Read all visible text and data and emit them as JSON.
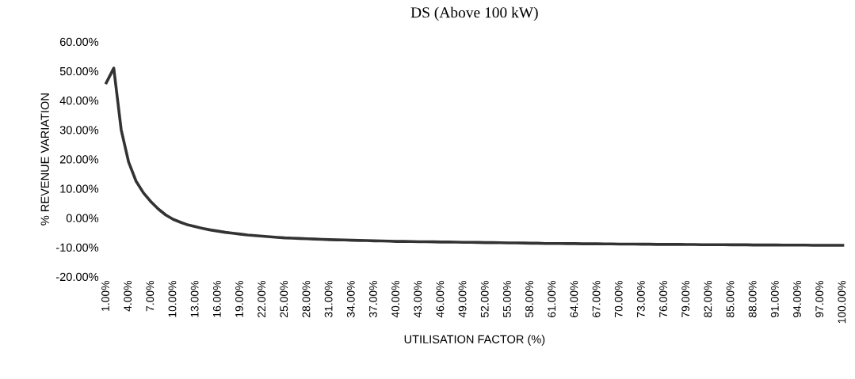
{
  "chart_data": {
    "type": "line",
    "title": "DS (Above 100 kW)",
    "xlabel": "UTILISATION FACTOR (%)",
    "ylabel": "% REVENUE VARIATION",
    "categories": [
      "1.00%",
      null,
      null,
      "4.00%",
      null,
      null,
      "7.00%",
      null,
      null,
      "10.00%",
      null,
      null,
      "13.00%",
      null,
      null,
      "16.00%",
      null,
      null,
      "19.00%",
      null,
      null,
      "22.00%",
      null,
      null,
      "25.00%",
      null,
      null,
      "28.00%",
      null,
      null,
      "31.00%",
      null,
      null,
      "34.00%",
      null,
      null,
      "37.00%",
      null,
      null,
      "40.00%",
      null,
      null,
      "43.00%",
      null,
      null,
      "46.00%",
      null,
      null,
      "49.00%",
      null,
      null,
      "52.00%",
      null,
      null,
      "55.00%",
      null,
      null,
      "58.00%",
      null,
      null,
      "61.00%",
      null,
      null,
      "64.00%",
      null,
      null,
      "67.00%",
      null,
      null,
      "70.00%",
      null,
      null,
      "73.00%",
      null,
      null,
      "76.00%",
      null,
      null,
      "79.00%",
      null,
      null,
      "82.00%",
      null,
      null,
      "85.00%",
      null,
      null,
      "88.00%",
      null,
      null,
      "91.00%",
      null,
      null,
      "94.00%",
      null,
      null,
      "97.00%",
      null,
      null,
      "100.00%"
    ],
    "series": [
      {
        "color": "#333333",
        "values": [
          46,
          51,
          30,
          19,
          12.5,
          8.5,
          5.5,
          3,
          1,
          -0.5,
          -1.5,
          -2.4,
          -3,
          -3.6,
          -4.1,
          -4.5,
          -4.9,
          -5.2,
          -5.5,
          -5.8,
          -6,
          -6.2,
          -6.4,
          -6.6,
          -6.8,
          -6.9,
          -7.0,
          -7.1,
          -7.2,
          -7.3,
          -7.4,
          -7.45,
          -7.5,
          -7.6,
          -7.65,
          -7.7,
          -7.8,
          -7.85,
          -7.9,
          -8.0,
          -8.0,
          -8.05,
          -8.1,
          -8.1,
          -8.15,
          -8.2,
          -8.2,
          -8.25,
          -8.3,
          -8.3,
          -8.35,
          -8.4,
          -8.4,
          -8.45,
          -8.5,
          -8.5,
          -8.55,
          -8.6,
          -8.6,
          -8.7,
          -8.7,
          -8.7,
          -8.75,
          -8.75,
          -8.8,
          -8.8,
          -8.8,
          -8.85,
          -8.85,
          -8.9,
          -8.9,
          -8.9,
          -8.95,
          -8.95,
          -9.0,
          -9.0,
          -9.0,
          -9.0,
          -9.05,
          -9.05,
          -9.1,
          -9.1,
          -9.1,
          -9.1,
          -9.15,
          -9.15,
          -9.15,
          -9.2,
          -9.2,
          -9.2,
          -9.2,
          -9.25,
          -9.25,
          -9.25,
          -9.25,
          -9.3,
          -9.3,
          -9.3,
          -9.3,
          -9.3
        ]
      }
    ],
    "ylim": [
      -20,
      60
    ],
    "yticks": [
      {
        "value": -20,
        "label": "-20.00%"
      },
      {
        "value": -10,
        "label": "-10.00%"
      },
      {
        "value": 0,
        "label": "0.00%"
      },
      {
        "value": 10,
        "label": "10.00%"
      },
      {
        "value": 20,
        "label": "20.00%"
      },
      {
        "value": 30,
        "label": "30.00%"
      },
      {
        "value": 40,
        "label": "40.00%"
      },
      {
        "value": 50,
        "label": "50.00%"
      },
      {
        "value": 60,
        "label": "60.00%"
      }
    ],
    "grid": false,
    "legend": false,
    "marker": "none",
    "line_style": "solid"
  }
}
